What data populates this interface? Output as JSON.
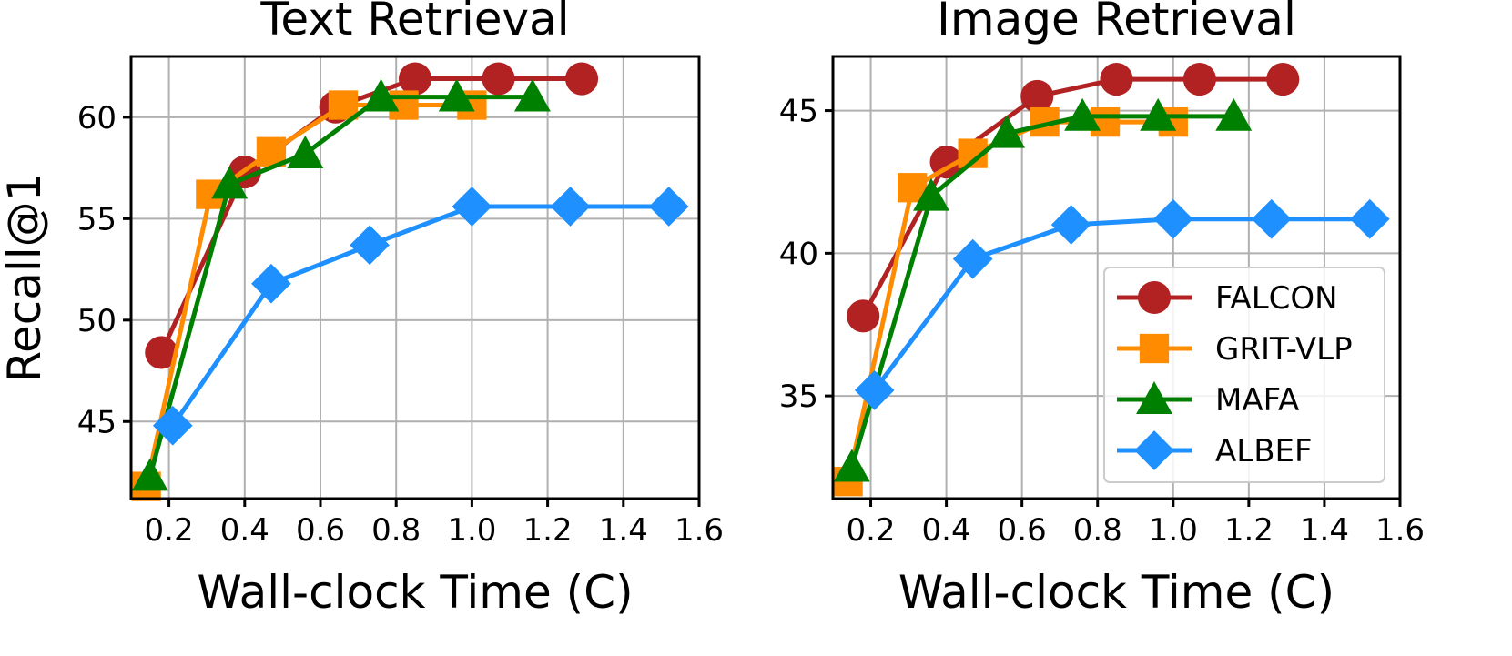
{
  "chart_data": [
    {
      "type": "line",
      "title": "Text Retrieval",
      "xlabel": "Wall-clock Time (C)",
      "ylabel": "Recall@1",
      "xlim": [
        0.1,
        1.6
      ],
      "ylim": [
        41.2,
        63.0
      ],
      "xticks": [
        0.2,
        0.4,
        0.6,
        0.8,
        1.0,
        1.2,
        1.4,
        1.6
      ],
      "xtick_labels": [
        "0.2",
        "0.4",
        "0.6",
        "0.8",
        "1.0",
        "1.2",
        "1.4",
        "1.6"
      ],
      "yticks": [
        45,
        50,
        55,
        60
      ],
      "ytick_labels": [
        "45",
        "50",
        "55",
        "60"
      ],
      "grid": true,
      "series": [
        {
          "name": "FALCON",
          "color": "#b22222",
          "marker": "circle",
          "x": [
            0.18,
            0.4,
            0.64,
            0.85,
            1.07,
            1.29
          ],
          "y": [
            48.4,
            57.3,
            60.5,
            61.9,
            61.9,
            61.9
          ]
        },
        {
          "name": "GRIT-VLP",
          "color": "#ff8c00",
          "marker": "square",
          "x": [
            0.14,
            0.31,
            0.47,
            0.66,
            0.82,
            1.0
          ],
          "y": [
            41.8,
            56.2,
            58.3,
            60.6,
            60.6,
            60.6
          ]
        },
        {
          "name": "MAFA",
          "color": "#008000",
          "marker": "triangle",
          "x": [
            0.15,
            0.36,
            0.56,
            0.76,
            0.96,
            1.16
          ],
          "y": [
            42.3,
            56.7,
            58.2,
            61.0,
            61.0,
            61.0
          ]
        },
        {
          "name": "ALBEF",
          "color": "#1e90ff",
          "marker": "diamond",
          "x": [
            0.21,
            0.47,
            0.73,
            1.0,
            1.26,
            1.52
          ],
          "y": [
            44.8,
            51.8,
            53.7,
            55.6,
            55.6,
            55.6
          ]
        }
      ]
    },
    {
      "type": "line",
      "title": "Image Retrieval",
      "xlabel": "Wall-clock Time (C)",
      "ylabel": "",
      "xlim": [
        0.1,
        1.6
      ],
      "ylim": [
        31.4,
        46.9
      ],
      "xticks": [
        0.2,
        0.4,
        0.6,
        0.8,
        1.0,
        1.2,
        1.4,
        1.6
      ],
      "xtick_labels": [
        "0.2",
        "0.4",
        "0.6",
        "0.8",
        "1.0",
        "1.2",
        "1.4",
        "1.6"
      ],
      "yticks": [
        35,
        40,
        45
      ],
      "ytick_labels": [
        "35",
        "40",
        "45"
      ],
      "grid": true,
      "legend": "lower-right",
      "series": [
        {
          "name": "FALCON",
          "color": "#b22222",
          "marker": "circle",
          "x": [
            0.18,
            0.4,
            0.64,
            0.85,
            1.07,
            1.29
          ],
          "y": [
            37.8,
            43.2,
            45.5,
            46.1,
            46.1,
            46.1
          ]
        },
        {
          "name": "GRIT-VLP",
          "color": "#ff8c00",
          "marker": "square",
          "x": [
            0.14,
            0.31,
            0.47,
            0.66,
            0.82,
            1.0
          ],
          "y": [
            32.0,
            42.3,
            43.5,
            44.6,
            44.6,
            44.6
          ]
        },
        {
          "name": "MAFA",
          "color": "#008000",
          "marker": "triangle",
          "x": [
            0.15,
            0.36,
            0.56,
            0.76,
            0.96,
            1.16
          ],
          "y": [
            32.5,
            42.0,
            44.2,
            44.8,
            44.8,
            44.8
          ]
        },
        {
          "name": "ALBEF",
          "color": "#1e90ff",
          "marker": "diamond",
          "x": [
            0.21,
            0.47,
            0.73,
            1.0,
            1.26,
            1.52
          ],
          "y": [
            35.2,
            39.8,
            41.0,
            41.2,
            41.2,
            41.2
          ]
        }
      ]
    }
  ]
}
